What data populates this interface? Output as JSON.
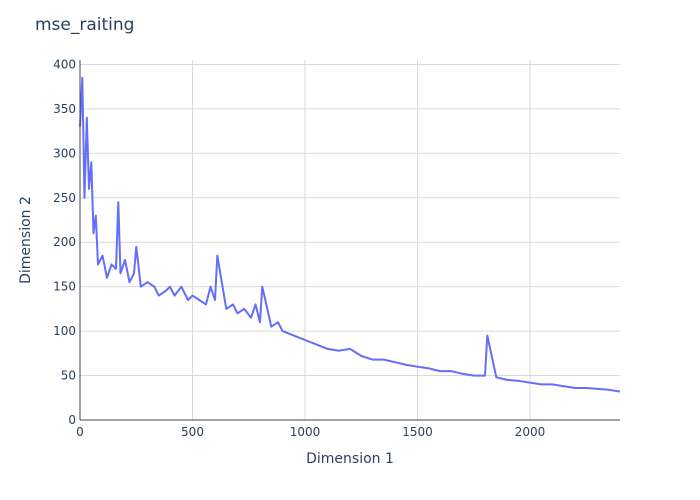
{
  "chart_data": {
    "type": "line",
    "title": "mse_raiting",
    "xlabel": "Dimension 1",
    "ylabel": "Dimension 2",
    "xlim": [
      0,
      2400
    ],
    "ylim": [
      0,
      405
    ],
    "x_ticks": [
      0,
      500,
      1000,
      1500,
      2000
    ],
    "y_ticks": [
      0,
      50,
      100,
      150,
      200,
      250,
      300,
      350,
      400
    ],
    "grid": true,
    "legend": "none",
    "line_color": "#636efa",
    "series": [
      {
        "x": [
          0,
          10,
          20,
          30,
          40,
          50,
          60,
          70,
          80,
          100,
          120,
          140,
          160,
          170,
          180,
          200,
          220,
          240,
          250,
          270,
          300,
          330,
          350,
          380,
          400,
          420,
          450,
          480,
          500,
          530,
          560,
          580,
          600,
          610,
          650,
          680,
          700,
          730,
          760,
          780,
          800,
          810,
          850,
          880,
          900,
          950,
          1000,
          1050,
          1100,
          1150,
          1200,
          1250,
          1300,
          1350,
          1400,
          1450,
          1500,
          1550,
          1600,
          1650,
          1700,
          1750,
          1800,
          1810,
          1850,
          1900,
          1950,
          2000,
          2050,
          2100,
          2150,
          2200,
          2250,
          2300,
          2350,
          2400
        ],
        "y": [
          330,
          385,
          250,
          340,
          260,
          290,
          210,
          230,
          175,
          185,
          160,
          175,
          170,
          245,
          165,
          180,
          155,
          165,
          195,
          150,
          155,
          150,
          140,
          145,
          150,
          140,
          150,
          135,
          140,
          135,
          130,
          150,
          135,
          185,
          125,
          130,
          120,
          125,
          115,
          130,
          110,
          150,
          105,
          110,
          100,
          95,
          90,
          85,
          80,
          78,
          80,
          72,
          68,
          68,
          65,
          62,
          60,
          58,
          55,
          55,
          52,
          50,
          50,
          95,
          48,
          45,
          44,
          42,
          40,
          40,
          38,
          36,
          36,
          35,
          34,
          32
        ]
      }
    ]
  }
}
